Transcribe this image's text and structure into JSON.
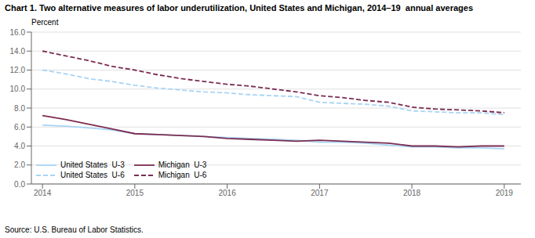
{
  "chart_data": {
    "type": "line",
    "title": "Chart 1. Two alternative measures of labor underutilization, United States and Michigan, 2014–19  annual averages",
    "y_label": "Percent",
    "annotations": [
      "Source: U.S. Bureau of Labor Statistics."
    ],
    "x": [
      2014,
      2014.25,
      2014.5,
      2014.75,
      2015,
      2015.25,
      2015.5,
      2015.75,
      2016,
      2016.25,
      2016.5,
      2016.75,
      2017,
      2017.25,
      2017.5,
      2017.75,
      2018,
      2018.25,
      2018.5,
      2018.75,
      2019
    ],
    "series": [
      {
        "name": "United States  U-3",
        "color": "#a8d4f5",
        "line_style": "solid",
        "values": [
          6.2,
          6.1,
          5.9,
          5.7,
          5.3,
          5.2,
          5.1,
          5.0,
          4.9,
          4.8,
          4.7,
          4.6,
          4.4,
          4.4,
          4.3,
          4.1,
          3.9,
          3.9,
          3.8,
          3.8,
          3.7
        ]
      },
      {
        "name": "United States  U-6",
        "color": "#a8d4f5",
        "line_style": "dashed",
        "values": [
          12.0,
          11.6,
          11.1,
          10.8,
          10.4,
          10.1,
          9.9,
          9.7,
          9.6,
          9.4,
          9.3,
          9.2,
          8.6,
          8.5,
          8.4,
          8.2,
          7.7,
          7.6,
          7.5,
          7.5,
          7.3
        ]
      },
      {
        "name": "Michigan  U-3",
        "color": "#7b2d52",
        "line_style": "solid",
        "values": [
          7.2,
          6.8,
          6.3,
          5.8,
          5.3,
          5.2,
          5.1,
          5.0,
          4.8,
          4.7,
          4.6,
          4.5,
          4.6,
          4.5,
          4.4,
          4.3,
          4.0,
          4.0,
          3.9,
          4.0,
          4.0
        ]
      },
      {
        "name": "Michigan  U-6",
        "color": "#7b2d52",
        "line_style": "dashed",
        "values": [
          14.0,
          13.5,
          13.0,
          12.4,
          12.0,
          11.5,
          11.1,
          10.8,
          10.5,
          10.3,
          10.0,
          9.7,
          9.3,
          9.1,
          8.8,
          8.6,
          8.1,
          7.9,
          7.8,
          7.7,
          7.5
        ]
      }
    ],
    "xlim": [
      2013.88,
      2019.18
    ],
    "xticks": [
      2014,
      2015,
      2016,
      2017,
      2018,
      2019
    ],
    "ylim": [
      0.0,
      16.0
    ],
    "yticks": [
      {
        "value": 0,
        "label": "0.0"
      },
      {
        "value": 2,
        "label": "2.0"
      },
      {
        "value": 4,
        "label": "4.0"
      },
      {
        "value": 6,
        "label": "6.0"
      },
      {
        "value": 8,
        "label": "8.0"
      },
      {
        "value": 10,
        "label": "10.0"
      },
      {
        "value": 12,
        "label": "12.0"
      },
      {
        "value": 14,
        "label": "14.0"
      },
      {
        "value": 16,
        "label": "16.0"
      }
    ],
    "grid": true,
    "legend": "lower left"
  }
}
